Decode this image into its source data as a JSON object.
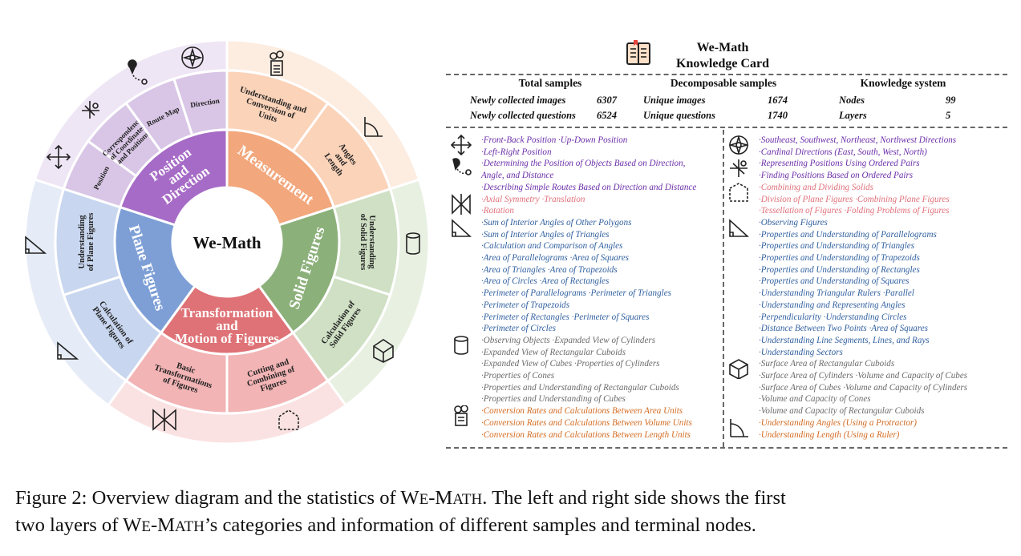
{
  "center": "We-Math",
  "inner": [
    {
      "name": "Position and Direction",
      "lines": [
        "Position",
        "and",
        "Direction"
      ],
      "color": "#a66bc6"
    },
    {
      "name": "Measurement",
      "lines": [
        "Measurement"
      ],
      "color": "#f2a77c"
    },
    {
      "name": "Solid Figures",
      "lines": [
        "Solid Figures"
      ],
      "color": "#8cb07a"
    },
    {
      "name": "Transformation and Motion of Figures",
      "lines": [
        "Transformation",
        "and",
        "Motion of Figures"
      ],
      "color": "#de7276"
    },
    {
      "name": "Plane Figures",
      "lines": [
        "Plane Figures"
      ],
      "color": "#7d9fd6"
    }
  ],
  "outer": [
    {
      "lines": [
        "Position"
      ],
      "color": "#d9c6e6"
    },
    {
      "lines": [
        "Correspondence",
        "of Coordinates",
        "and Positions"
      ],
      "color": "#d9c6e6"
    },
    {
      "lines": [
        "Route Map"
      ],
      "color": "#d9c6e6"
    },
    {
      "lines": [
        "Direction"
      ],
      "color": "#d9c6e6"
    },
    {
      "lines": [
        "Understanding and",
        "Conversion of",
        "Units"
      ],
      "color": "#fbd3b9"
    },
    {
      "lines": [
        "Angles",
        "and",
        "Length"
      ],
      "color": "#fbd3b9"
    },
    {
      "lines": [
        "Understanding",
        "of Solid Figures"
      ],
      "color": "#cfe0c4"
    },
    {
      "lines": [
        "Calculation of",
        "Solid Figures"
      ],
      "color": "#cfe0c4"
    },
    {
      "lines": [
        "Cutting and",
        "Combining of",
        "Figures"
      ],
      "color": "#f2b4b5"
    },
    {
      "lines": [
        "Basic",
        "Transformations",
        "of Figures"
      ],
      "color": "#f2b4b5"
    },
    {
      "lines": [
        "Calculation of",
        "Plane Figures"
      ],
      "color": "#c8d6ef"
    },
    {
      "lines": [
        "Understanding",
        "of Plane Figures"
      ],
      "color": "#c8d6ef"
    }
  ],
  "card": {
    "title_line1": "We-Math",
    "title_line2": "Knowledge Card",
    "total": {
      "header": "Total samples",
      "r1_label": "Newly collected images",
      "r1_value": "6307",
      "r2_label": "Newly collected questions",
      "r2_value": "6524"
    },
    "decomp": {
      "header": "Decomposable samples",
      "r1_label": "Unique images",
      "r1_value": "1674",
      "r2_label": "Unique questions",
      "r2_value": "1740"
    },
    "know": {
      "header": "Knowledge system",
      "r1_label": "Nodes",
      "r1_value": "99",
      "r2_label": "Layers",
      "r2_value": "5"
    },
    "left": [
      {
        "icon": "four-arrows-icon",
        "cls": "purple",
        "lines": [
          "·Front-Back Position  ·Up-Down Position",
          "·Left-Right Position"
        ]
      },
      {
        "icon": "route-pin-icon",
        "cls": "purple",
        "lines": [
          "·Determining the Position of Objects Based on Direction,",
          "Angle, and Distance",
          "·Describing Simple Routes Based on Direction and Distance"
        ]
      },
      {
        "icon": "symmetry-icon",
        "cls": "pink",
        "lines": [
          "·Axial Symmetry  ·Translation",
          "·Rotation"
        ]
      },
      {
        "icon": "triangle-ruler-icon",
        "cls": "blue",
        "lines": [
          "·Sum of Interior Angles of Other Polygons",
          "·Sum of Interior Angles of Triangles",
          "·Calculation and Comparison of Angles",
          "·Area of Parallelograms  ·Area of Squares",
          "·Area of Triangles  ·Area of Trapezoids",
          "·Area of Circles  ·Area of Rectangles",
          "·Perimeter of Parallelograms  ·Perimeter of Triangles",
          "·Perimeter of Trapezoids",
          "·Perimeter of Rectangles  ·Perimeter of Squares",
          "·Perimeter of Circles"
        ]
      },
      {
        "icon": "cylinder-icon",
        "cls": "gray",
        "lines": [
          "·Observing Objects  ·Expanded View of Cylinders",
          "·Expanded View of Rectangular Cuboids",
          "·Expanded View of Cubes  ·Properties of Cylinders",
          "·Properties of Cones",
          "·Properties and Understanding of Rectangular Cuboids",
          "·Properties and Understanding of Cubes"
        ]
      },
      {
        "icon": "calculator-icon",
        "cls": "orange",
        "lines": [
          "·Conversion Rates and Calculations Between Area Units",
          "·Conversion Rates and Calculations Between Volume Units",
          "·Conversion Rates and Calculations Between Length Units"
        ]
      }
    ],
    "right": [
      {
        "icon": "compass-icon",
        "cls": "purple",
        "lines": [
          "·Southeast, Southwest, Northeast, Northwest Directions",
          "·Cardinal Directions (East, South, West, North)"
        ]
      },
      {
        "icon": "coordinate-icon",
        "cls": "purple",
        "lines": [
          "·Representing Positions Using Ordered Pairs",
          "·Finding Positions Based on Ordered Pairs"
        ]
      },
      {
        "icon": "cut-shape-icon",
        "cls": "pink",
        "lines": [
          "·Combining and Dividing Solids",
          "·Division of Plane Figures  ·Combining Plane Figures",
          "·Tessellation of Figures  ·Folding Problems of Figures"
        ]
      },
      {
        "icon": "triangle-ruler-icon",
        "cls": "blue",
        "lines": [
          "·Observing Figures",
          "·Properties and Understanding of Parallelograms",
          "·Properties and Understanding of Triangles",
          "·Properties and Understanding of Trapezoids",
          "·Properties and Understanding of Rectangles",
          "·Properties and Understanding of Squares",
          "·Understanding Triangular Rulers  ·Parallel",
          "·Understanding and Representing Angles",
          " ·Perpendicularity  ·Understanding Circles",
          "·Distance Between Two Points  ·Area of Squares",
          "·Understanding Line Segments, Lines, and Rays",
          "·Understanding Sectors"
        ]
      },
      {
        "icon": "cuboid-icon",
        "cls": "gray",
        "lines": [
          "·Surface Area of Rectangular Cuboids",
          "·Surface Area of Cylinders  ·Volume and Capacity of Cubes",
          "·Surface Area of Cubes  ·Volume and Capacity of Cylinders",
          "·Volume and Capacity of Cones",
          "·Volume and Capacity of Rectangular Cuboids"
        ]
      },
      {
        "icon": "protractor-icon",
        "cls": "orange",
        "lines": [
          "·Understanding Angles (Using a Protractor)",
          "·Understanding Length (Using a Ruler)"
        ]
      }
    ]
  },
  "caption": {
    "p1": "Figure 2: Overview diagram and the statistics of W",
    "s1": "E",
    "p2": "-M",
    "s2": "ATH",
    "p3": ". The left and right side shows the first",
    "p4": "two layers of W",
    "s3": "E",
    "p5": "-M",
    "s4": "ATH",
    "p6": "’s categories and information of different samples and terminal nodes."
  }
}
